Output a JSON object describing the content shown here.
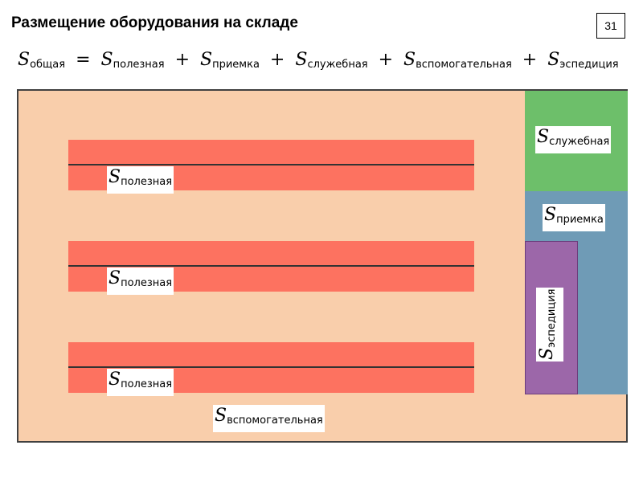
{
  "header": {
    "title": "Размещение оборудования на складе",
    "page_number": "31"
  },
  "formula": {
    "symbol": "S",
    "total_sub": "общая",
    "equals": "=",
    "plus": "+",
    "terms": [
      "полезная",
      "приемка",
      "служебная",
      "вспомогательная",
      "эспедиция"
    ]
  },
  "zones": {
    "symbol": "S",
    "useful": "полезная",
    "service": "служебная",
    "receiving": "приемка",
    "shipping": "эспедиция",
    "auxiliary": "вспомогательная"
  },
  "colors": {
    "warehouse_floor": "#f9ceab",
    "storage_rack": "#fd7260",
    "service_zone": "#6dbf6a",
    "receiving_zone": "#6f9bb6",
    "shipping_zone": "#9c67a9"
  }
}
